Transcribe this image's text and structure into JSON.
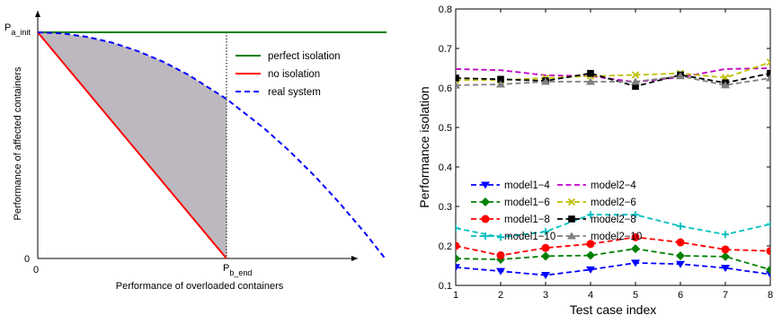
{
  "chart_data": [
    {
      "type": "line",
      "title": "",
      "xlabel": "Performance of overloaded containers",
      "ylabel": "Performance of affected containers",
      "xlim": [
        0,
        1.6
      ],
      "ylim": [
        0,
        1.05
      ],
      "grid": false,
      "ticks": {
        "x": [
          {
            "v": 0,
            "label": "0"
          },
          {
            "v": 0.75,
            "label": "P",
            "sub": "b_end"
          }
        ],
        "y": [
          {
            "v": 0,
            "label": "0"
          },
          {
            "v": 1,
            "label": "P",
            "sub": "a_init"
          }
        ]
      },
      "series": [
        {
          "name": "perfect isolation",
          "color": "#008000",
          "dash": "solid",
          "x": [
            0,
            1.6
          ],
          "y": [
            1,
            1
          ]
        },
        {
          "name": "no isolation",
          "color": "#ff0000",
          "dash": "solid",
          "x": [
            0,
            0.75
          ],
          "y": [
            1,
            0
          ]
        },
        {
          "name": "real system",
          "color": "#0000ff",
          "dash": "dashed",
          "x": [
            0,
            0.1,
            0.2,
            0.3,
            0.4,
            0.5,
            0.6,
            0.75,
            0.9,
            1.0,
            1.1,
            1.2,
            1.3,
            1.38
          ],
          "y": [
            1,
            0.995,
            0.979,
            0.953,
            0.916,
            0.869,
            0.811,
            0.705,
            0.575,
            0.475,
            0.365,
            0.244,
            0.113,
            0
          ]
        }
      ],
      "shaded_region": {
        "color": "#bdb8bf",
        "between": [
          "no isolation",
          "real system"
        ],
        "x_range": [
          0,
          0.75
        ]
      },
      "vline": {
        "x": 0.75,
        "style": "dotted",
        "color": "#000000"
      },
      "legend": {
        "placement": "top-right"
      }
    },
    {
      "type": "line",
      "title": "",
      "xlabel": "Test case index",
      "ylabel": "Performance isolation",
      "xlim": [
        1,
        8
      ],
      "ylim": [
        0.1,
        0.8
      ],
      "grid": false,
      "xticks": [
        1,
        2,
        3,
        4,
        5,
        6,
        7,
        8
      ],
      "xtick_labels": [
        "1",
        "2",
        "3",
        "4",
        "5",
        "6",
        "7",
        "8"
      ],
      "yticks": [
        0.1,
        0.2,
        0.3,
        0.4,
        0.5,
        0.6,
        0.7,
        0.8
      ],
      "ytick_labels": [
        "0.1",
        "0.2",
        "0.3",
        "0.4",
        "0.5",
        "0.6",
        "0.7",
        "0.8"
      ],
      "x": [
        1,
        2,
        3,
        4,
        5,
        6,
        7,
        8
      ],
      "series": [
        {
          "name": "model1−4",
          "color": "#0000ff",
          "marker": "triangle-down",
          "values": [
            0.146,
            0.136,
            0.126,
            0.14,
            0.157,
            0.154,
            0.144,
            0.128
          ]
        },
        {
          "name": "model1−6",
          "color": "#008000",
          "marker": "diamond",
          "values": [
            0.168,
            0.166,
            0.174,
            0.176,
            0.193,
            0.175,
            0.173,
            0.14
          ]
        },
        {
          "name": "model1−8",
          "color": "#ff0000",
          "marker": "circle",
          "values": [
            0.2,
            0.176,
            0.195,
            0.205,
            0.222,
            0.209,
            0.191,
            0.187
          ]
        },
        {
          "name": "model1−10",
          "color": "#00bfbf",
          "marker": "plus",
          "values": [
            0.245,
            0.222,
            0.236,
            0.279,
            0.279,
            0.25,
            0.229,
            0.255
          ]
        },
        {
          "name": "model2−4",
          "color": "#bf00bf",
          "marker": "none",
          "values": [
            0.648,
            0.645,
            0.632,
            0.63,
            0.615,
            0.627,
            0.648,
            0.65
          ]
        },
        {
          "name": "model2−6",
          "color": "#bfbf00",
          "marker": "x",
          "values": [
            0.62,
            0.62,
            0.625,
            0.63,
            0.633,
            0.637,
            0.626,
            0.665
          ]
        },
        {
          "name": "model2−8",
          "color": "#000000",
          "marker": "square",
          "values": [
            0.625,
            0.622,
            0.618,
            0.637,
            0.604,
            0.633,
            0.613,
            0.637
          ]
        },
        {
          "name": "model2−10",
          "color": "#7f7f7f",
          "marker": "triangle-up",
          "values": [
            0.607,
            0.609,
            0.616,
            0.616,
            0.616,
            0.63,
            0.607,
            0.625
          ]
        }
      ],
      "legend": {
        "placement": "center-left",
        "columns": 2
      }
    }
  ]
}
